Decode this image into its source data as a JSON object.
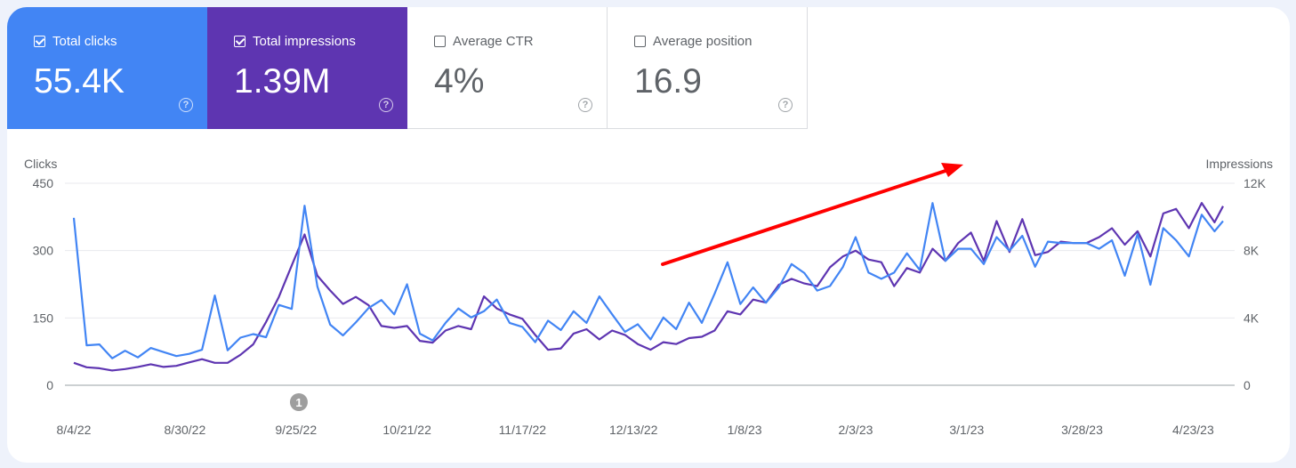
{
  "metrics": [
    {
      "label": "Total clicks",
      "value": "55.4K",
      "checked": true,
      "color": "#4285f4"
    },
    {
      "label": "Total impressions",
      "value": "1.39M",
      "checked": true,
      "color": "#5e35b1"
    },
    {
      "label": "Average CTR",
      "value": "4%",
      "checked": false
    },
    {
      "label": "Average position",
      "value": "16.9",
      "checked": false
    }
  ],
  "help_glyph": "?",
  "chart_data": {
    "type": "line",
    "left_axis_label": "Clicks",
    "right_axis_label": "Impressions",
    "left_ylim": [
      0,
      450
    ],
    "right_ylim": [
      0,
      12000
    ],
    "left_ticks": [
      "0",
      "150",
      "300",
      "450"
    ],
    "right_ticks": [
      "0",
      "4K",
      "8K",
      "12K"
    ],
    "x_ticks": [
      "8/4/22",
      "8/30/22",
      "9/25/22",
      "10/21/22",
      "11/17/22",
      "12/13/22",
      "1/8/23",
      "2/3/23",
      "3/1/23",
      "3/28/23",
      "4/23/23"
    ],
    "grid": true,
    "annotation_marker": {
      "label": "1",
      "date": "9/24/22"
    },
    "trend_arrow_color": "#ff0000",
    "x": [
      "8/4/22",
      "8/7/22",
      "8/10/22",
      "8/13/22",
      "8/16/22",
      "8/19/22",
      "8/22/22",
      "8/25/22",
      "8/28/22",
      "8/31/22",
      "9/3/22",
      "9/6/22",
      "9/9/22",
      "9/12/22",
      "9/15/22",
      "9/18/22",
      "9/21/22",
      "9/24/22",
      "9/27/22",
      "9/30/22",
      "10/3/22",
      "10/6/22",
      "10/9/22",
      "10/12/22",
      "10/15/22",
      "10/18/22",
      "10/21/22",
      "10/24/22",
      "10/27/22",
      "10/30/22",
      "11/2/22",
      "11/5/22",
      "11/8/22",
      "11/11/22",
      "11/14/22",
      "11/17/22",
      "11/20/22",
      "11/23/22",
      "11/26/22",
      "11/29/22",
      "12/2/22",
      "12/5/22",
      "12/8/22",
      "12/11/22",
      "12/14/22",
      "12/17/22",
      "12/20/22",
      "12/23/22",
      "12/26/22",
      "12/29/22",
      "1/1/23",
      "1/4/23",
      "1/7/23",
      "1/10/23",
      "1/13/23",
      "1/16/23",
      "1/19/23",
      "1/22/23",
      "1/25/23",
      "1/28/23",
      "1/31/23",
      "2/3/23",
      "2/6/23",
      "2/9/23",
      "2/12/23",
      "2/15/23",
      "2/18/23",
      "2/21/23",
      "2/24/23",
      "2/27/23",
      "3/2/23",
      "3/5/23",
      "3/8/23",
      "3/11/23",
      "3/14/23",
      "3/17/23",
      "3/20/23",
      "3/23/23",
      "3/26/23",
      "3/29/23",
      "4/1/23",
      "4/4/23",
      "4/7/23",
      "4/10/23",
      "4/13/23",
      "4/16/23",
      "4/19/23",
      "4/22/23",
      "4/25/23",
      "4/28/23",
      "4/30/23"
    ],
    "series": [
      {
        "name": "Total clicks",
        "axis": "left",
        "color": "#4285f4",
        "values": [
          373,
          89,
          91,
          60,
          77,
          62,
          83,
          74,
          65,
          70,
          79,
          200,
          78,
          106,
          114,
          107,
          179,
          170,
          400,
          220,
          135,
          111,
          140,
          172,
          190,
          158,
          225,
          115,
          100,
          139,
          171,
          151,
          165,
          191,
          139,
          130,
          96,
          144,
          123,
          165,
          139,
          198,
          158,
          119,
          136,
          102,
          151,
          125,
          184,
          139,
          204,
          274,
          181,
          218,
          184,
          218,
          270,
          250,
          211,
          221,
          263,
          330,
          251,
          237,
          251,
          294,
          257,
          406,
          277,
          304,
          304,
          270,
          330,
          300,
          333,
          264,
          320,
          317,
          317,
          317,
          304,
          323,
          244,
          337,
          224,
          350,
          323,
          287,
          380,
          343,
          366
        ]
      },
      {
        "name": "Total impressions",
        "axis": "right",
        "color": "#5e35b1",
        "values": [
          1330,
          1070,
          1010,
          880,
          960,
          1090,
          1250,
          1090,
          1150,
          1360,
          1550,
          1330,
          1330,
          1810,
          2430,
          3760,
          5250,
          7120,
          8960,
          6510,
          5630,
          4830,
          5250,
          4750,
          3520,
          3410,
          3520,
          2640,
          2530,
          3250,
          3520,
          3330,
          5280,
          4560,
          4210,
          3950,
          2990,
          2110,
          2190,
          3070,
          3330,
          2720,
          3250,
          2990,
          2450,
          2110,
          2560,
          2450,
          2800,
          2880,
          3250,
          4400,
          4210,
          5090,
          4910,
          5970,
          6320,
          6050,
          5890,
          7010,
          7650,
          8000,
          7470,
          7310,
          5890,
          6960,
          6690,
          8110,
          7390,
          8450,
          9070,
          7390,
          9760,
          7920,
          9870,
          7730,
          7920,
          8530,
          8450,
          8450,
          8800,
          9330,
          8350,
          9150,
          7650,
          10210,
          10480,
          9330,
          10830,
          9680,
          10640
        ]
      }
    ]
  }
}
